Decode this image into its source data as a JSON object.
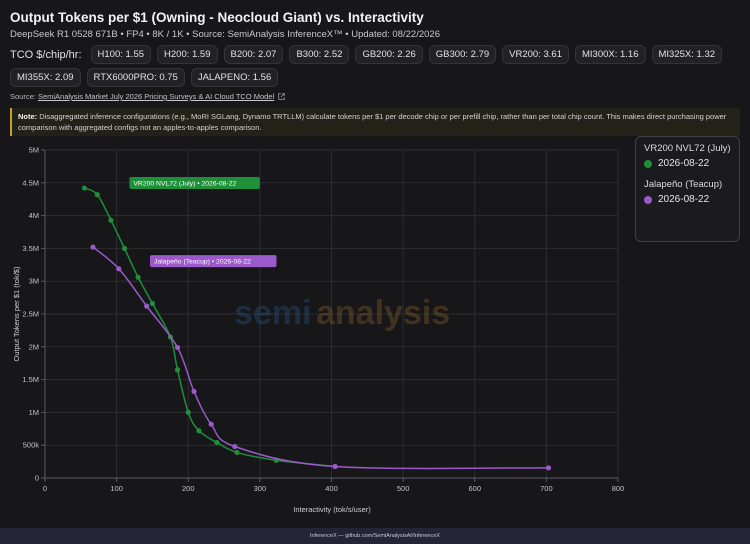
{
  "header": {
    "title": "Output Tokens per $1 (Owning - Neocloud Giant) vs. Interactivity",
    "subtitle": "DeepSeek R1 0528 671B • FP4 • 8K / 1K • Source: SemiAnalysis InferenceX™ • Updated: 08/22/2026"
  },
  "tco": {
    "label": "TCO $/chip/hr:",
    "chips": [
      "H100: 1.55",
      "H200: 1.59",
      "B200: 2.07",
      "B300: 2.52",
      "GB200: 2.26",
      "GB300: 2.79",
      "VR200: 3.61",
      "MI300X: 1.16",
      "MI325X: 1.32",
      "MI355X: 2.09",
      "RTX6000PRO: 0.75",
      "JALAPENO: 1.56"
    ]
  },
  "source": {
    "prefix": "Source:",
    "link": "SemiAnalysis Market July 2026 Pricing Surveys & AI Cloud TCO Model",
    "link_icon": "external-link-icon"
  },
  "note": {
    "label": "Note:",
    "text": "Disaggregated inference configurations (e.g., MoRI SGLang, Dynamo TRTLLM) calculate tokens per $1 per decode chip or per prefill chip, rather than per total chip count. This makes direct purchasing power comparison with aggregated configs not an apples-to-apples comparison."
  },
  "legend": {
    "items": [
      {
        "series": "VR200 NVL72 (July)",
        "date": "2026-08-22",
        "color": "#1f8f3a"
      },
      {
        "series": "Jalapeño (Teacup)",
        "date": "2026-08-22",
        "color": "#9b59c9"
      }
    ]
  },
  "watermark": {
    "part1": "semi",
    "part2": "analysis"
  },
  "footer": {
    "text": "InferenceX — github.com/SemiAnalysisAI/InferenceX"
  },
  "chart_data": {
    "type": "line",
    "xlabel": "Interactivity (tok/s/user)",
    "ylabel": "Output Tokens per $1 (tok/$)",
    "xlim": [
      0,
      800
    ],
    "ylim": [
      0,
      5000000
    ],
    "x_ticks": [
      0,
      100,
      200,
      300,
      400,
      500,
      600,
      700,
      800
    ],
    "x_tick_labels": [
      "0",
      "100",
      "200",
      "300",
      "400",
      "500",
      "600",
      "700",
      "800"
    ],
    "y_ticks": [
      0,
      500000,
      1000000,
      1500000,
      2000000,
      2500000,
      3000000,
      3500000,
      4000000,
      4500000,
      5000000
    ],
    "y_tick_labels": [
      "0",
      "500k",
      "1M",
      "1.5M",
      "2M",
      "2.5M",
      "3M",
      "3.5M",
      "4M",
      "4.5M",
      "5M"
    ],
    "grid": true,
    "legend_position": "right",
    "series": [
      {
        "name": "VR200 NVL72 (July)",
        "color": "#1f8f3a",
        "label": "VR200 NVL72 (July) • 2026-08-22",
        "x": [
          55,
          73,
          92,
          111,
          130,
          150,
          175,
          185,
          200,
          215,
          240,
          268,
          323,
          405
        ],
        "y": [
          4420000,
          4320000,
          3930000,
          3500000,
          3060000,
          2660000,
          2150000,
          1650000,
          1000000,
          720000,
          540000,
          390000,
          270000,
          175000
        ]
      },
      {
        "name": "Jalapeño (Teacup)",
        "color": "#9b59c9",
        "label": "Jalapeño (Teacup) • 2026-08-22",
        "x": [
          67,
          103,
          142,
          185,
          208,
          232,
          265,
          405,
          703
        ],
        "y": [
          3520000,
          3190000,
          2620000,
          1990000,
          1320000,
          820000,
          480000,
          175000,
          155000
        ]
      }
    ]
  }
}
